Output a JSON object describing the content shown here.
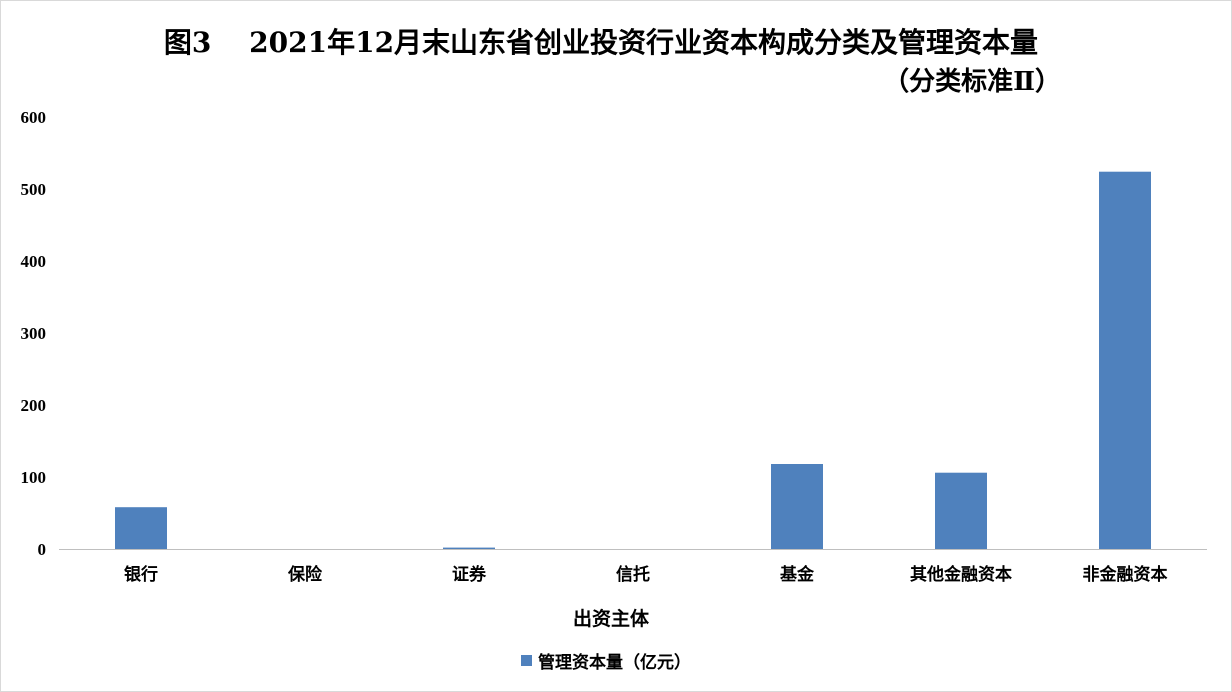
{
  "title": {
    "line1": "图3　 2021年12月末山东省创业投资行业资本构成分类及管理资本量",
    "line2": "（分类标准Ⅱ）"
  },
  "colors": {
    "bar": "#4f81bd",
    "axis": "#bfbfbf",
    "text": "#000000"
  },
  "chart_data": {
    "type": "bar",
    "categories": [
      "银行",
      "保险",
      "证券",
      "信托",
      "基金",
      "其他金融资本",
      "非金融资本"
    ],
    "series": [
      {
        "name": "管理资本量（亿元）",
        "values": [
          58,
          0,
          2,
          0,
          118,
          106,
          524
        ]
      }
    ],
    "xlabel": "出资主体",
    "ylabel": "",
    "ylim": [
      0,
      600
    ],
    "yticks": [
      0,
      100,
      200,
      300,
      400,
      500,
      600
    ],
    "grid": false,
    "legend_position": "bottom"
  },
  "legend": {
    "label": "管理资本量（亿元）"
  }
}
